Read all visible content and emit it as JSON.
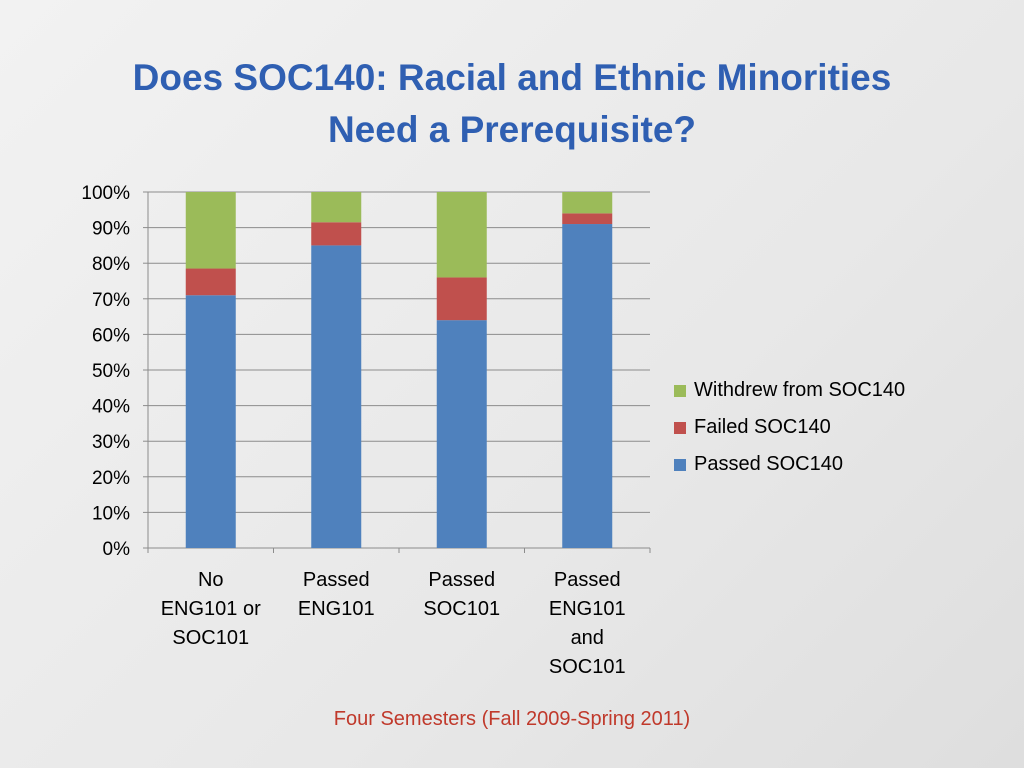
{
  "slide": {
    "title_line1": "Does SOC140: Racial and Ethnic Minorities",
    "title_line2": "Need a Prerequisite?",
    "caption": "Four Semesters (Fall 2009-Spring 2011)",
    "title_color": "#2f5fb2",
    "caption_color": "#c0392b"
  },
  "chart_data": {
    "type": "bar",
    "stacked": true,
    "percent": true,
    "categories": [
      [
        "No",
        "ENG101 or",
        "SOC101"
      ],
      [
        "Passed",
        "ENG101"
      ],
      [
        "Passed",
        "SOC101"
      ],
      [
        "Passed",
        "ENG101",
        "and",
        "SOC101"
      ]
    ],
    "series": [
      {
        "name": "Passed SOC140",
        "color": "#4f81bd",
        "values": [
          71,
          85,
          64,
          91
        ]
      },
      {
        "name": "Failed SOC140",
        "color": "#c0504d",
        "values": [
          7.5,
          6.5,
          12,
          3
        ]
      },
      {
        "name": "Withdrew from SOC140",
        "color": "#9bbb59",
        "values": [
          21.5,
          8.5,
          24,
          6
        ]
      }
    ],
    "ylim": [
      0,
      100
    ],
    "yticks": [
      "0%",
      "10%",
      "20%",
      "30%",
      "40%",
      "50%",
      "60%",
      "70%",
      "80%",
      "90%",
      "100%"
    ],
    "grid": true,
    "legend_position": "right",
    "legend_order": [
      "Withdrew from SOC140",
      "Failed SOC140",
      "Passed SOC140"
    ]
  }
}
